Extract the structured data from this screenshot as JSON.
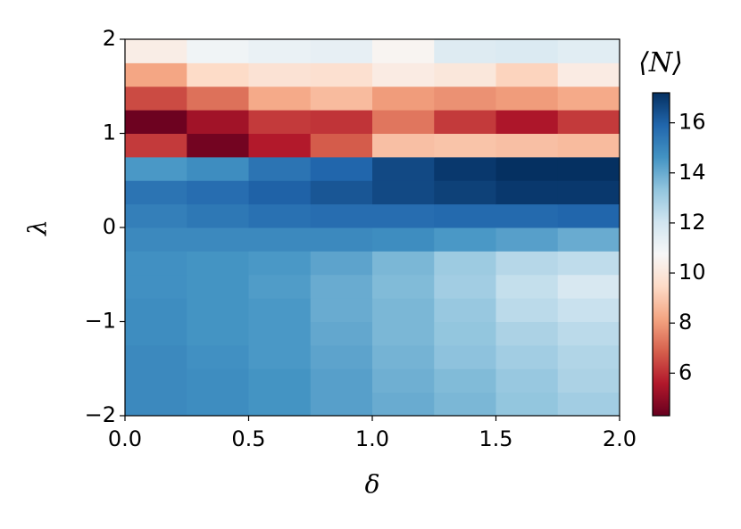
{
  "chart_data": {
    "type": "heatmap",
    "xlabel": "δ",
    "ylabel": "λ",
    "colorbar_label": "⟨N⟩",
    "colormap": "RdBu",
    "xbins": [
      0,
      0.25,
      0.5,
      0.75,
      1.0,
      1.25,
      1.5,
      1.75,
      2.0
    ],
    "ybins": [
      -2,
      -1.75,
      -1.5,
      -1.25,
      -1,
      -0.75,
      -0.5,
      -0.25,
      0,
      0.25,
      0.5,
      0.75,
      1,
      1.25,
      1.5,
      1.75,
      2
    ],
    "values": [
      [
        14.9,
        14.8,
        14.6,
        14.3,
        14.0,
        13.7,
        13.3,
        13.0
      ],
      [
        14.9,
        14.8,
        14.6,
        14.3,
        13.9,
        13.6,
        13.2,
        12.8
      ],
      [
        14.9,
        14.7,
        14.5,
        14.2,
        13.8,
        13.4,
        13.0,
        12.7
      ],
      [
        14.8,
        14.6,
        14.5,
        14.1,
        13.7,
        13.3,
        12.8,
        12.5
      ],
      [
        14.8,
        14.6,
        14.5,
        14.0,
        13.7,
        13.2,
        12.5,
        12.2
      ],
      [
        14.7,
        14.6,
        14.4,
        14.0,
        13.6,
        13.0,
        12.3,
        11.8
      ],
      [
        14.7,
        14.6,
        14.5,
        14.2,
        13.7,
        13.1,
        12.6,
        12.4
      ],
      [
        14.9,
        14.9,
        14.9,
        14.9,
        14.8,
        14.5,
        14.3,
        14.0
      ],
      [
        15.2,
        15.4,
        15.6,
        15.7,
        15.7,
        15.8,
        15.8,
        15.9
      ],
      [
        15.5,
        15.7,
        16.0,
        16.3,
        16.6,
        16.8,
        17.0,
        17.0
      ],
      [
        14.5,
        14.8,
        15.5,
        15.9,
        16.6,
        17.0,
        17.2,
        17.2
      ],
      [
        6.2,
        4.5,
        5.6,
        6.8,
        8.8,
        8.9,
        8.8,
        8.7
      ],
      [
        4.4,
        5.3,
        6.2,
        6.1,
        7.3,
        6.2,
        5.5,
        6.2
      ],
      [
        6.5,
        7.2,
        8.3,
        8.7,
        8.0,
        7.8,
        8.0,
        8.3
      ],
      [
        8.2,
        9.5,
        9.8,
        9.7,
        10.2,
        10.0,
        9.3,
        10.2
      ],
      [
        10.3,
        11.0,
        11.2,
        11.3,
        10.6,
        11.6,
        11.7,
        11.5
      ]
    ],
    "xlim": [
      0,
      2
    ],
    "ylim": [
      -2,
      2
    ],
    "clim": [
      4.3,
      17.2
    ],
    "xticks": [
      {
        "value": 0,
        "label": "0.0"
      },
      {
        "value": 0.5,
        "label": "0.5"
      },
      {
        "value": 1,
        "label": "1.0"
      },
      {
        "value": 1.5,
        "label": "1.5"
      },
      {
        "value": 2,
        "label": "2.0"
      }
    ],
    "yticks": [
      {
        "value": -2,
        "label": "−2"
      },
      {
        "value": -1,
        "label": "−1"
      },
      0,
      1,
      2
    ],
    "cticks": [
      6,
      8,
      10,
      12,
      14,
      16
    ]
  }
}
